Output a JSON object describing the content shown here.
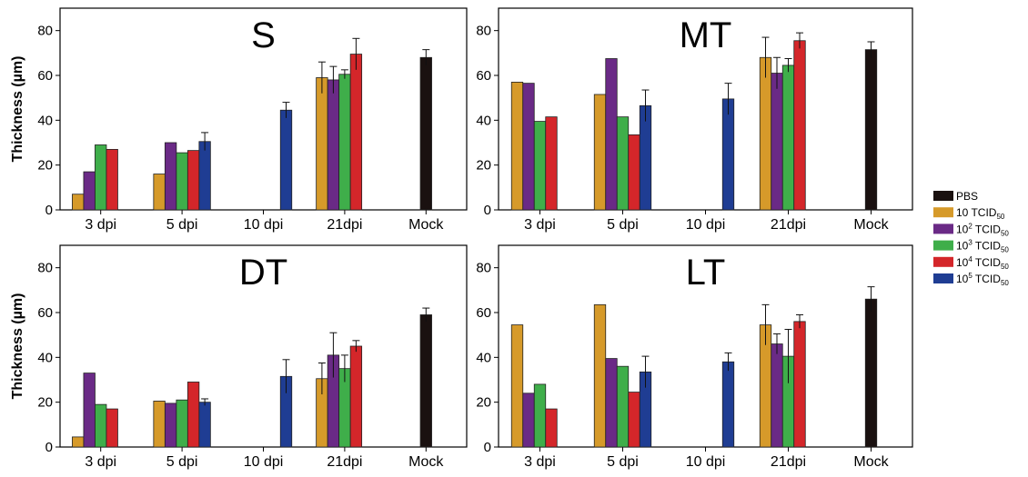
{
  "chart_data": [
    {
      "type": "bar",
      "title": "S",
      "ylabel": "Thickness (µm)",
      "ylim": [
        0,
        90
      ],
      "yticks": [
        0,
        20,
        40,
        60,
        80
      ],
      "categories": [
        "3 dpi",
        "5 dpi",
        "10 dpi",
        "21dpi",
        "Mock"
      ],
      "series": [
        {
          "name": "PBS",
          "values": [
            null,
            null,
            null,
            null,
            68
          ],
          "errors": [
            null,
            null,
            null,
            null,
            3.5
          ]
        },
        {
          "name": "10 TCID50",
          "values": [
            7,
            16,
            null,
            59,
            null
          ],
          "errors": [
            null,
            null,
            null,
            7,
            null
          ]
        },
        {
          "name": "10² TCID50",
          "values": [
            17,
            30,
            null,
            58,
            null
          ],
          "errors": [
            null,
            null,
            null,
            6,
            null
          ]
        },
        {
          "name": "10³ TCID50",
          "values": [
            29,
            25.5,
            null,
            60.5,
            null
          ],
          "errors": [
            null,
            null,
            null,
            2,
            null
          ]
        },
        {
          "name": "10⁴ TCID50",
          "values": [
            27,
            26.5,
            null,
            69.5,
            null
          ],
          "errors": [
            null,
            null,
            null,
            7,
            null
          ]
        },
        {
          "name": "10⁵ TCID50",
          "values": [
            null,
            30.5,
            44.5,
            null,
            null
          ],
          "errors": [
            null,
            4,
            3.5,
            null,
            null
          ]
        }
      ]
    },
    {
      "type": "bar",
      "title": "MT",
      "ylabel": "",
      "ylim": [
        0,
        90
      ],
      "yticks": [
        0,
        20,
        40,
        60,
        80
      ],
      "categories": [
        "3 dpi",
        "5 dpi",
        "10 dpi",
        "21dpi",
        "Mock"
      ],
      "series": [
        {
          "name": "PBS",
          "values": [
            null,
            null,
            null,
            null,
            71.5
          ],
          "errors": [
            null,
            null,
            null,
            null,
            3.5
          ]
        },
        {
          "name": "10 TCID50",
          "values": [
            57,
            51.5,
            null,
            68,
            null
          ],
          "errors": [
            null,
            null,
            null,
            9,
            null
          ]
        },
        {
          "name": "10² TCID50",
          "values": [
            56.5,
            67.5,
            null,
            61,
            null
          ],
          "errors": [
            null,
            null,
            null,
            7,
            null
          ]
        },
        {
          "name": "10³ TCID50",
          "values": [
            39.5,
            41.5,
            null,
            64.5,
            null
          ],
          "errors": [
            null,
            null,
            null,
            3,
            null
          ]
        },
        {
          "name": "10⁴ TCID50",
          "values": [
            41.5,
            33.5,
            null,
            75.5,
            null
          ],
          "errors": [
            null,
            null,
            null,
            3.5,
            null
          ]
        },
        {
          "name": "10⁵ TCID50",
          "values": [
            null,
            46.5,
            49.5,
            null,
            null
          ],
          "errors": [
            null,
            7,
            7,
            null,
            null
          ]
        }
      ]
    },
    {
      "type": "bar",
      "title": "DT",
      "ylabel": "Thickness (µm)",
      "ylim": [
        0,
        90
      ],
      "yticks": [
        0,
        20,
        40,
        60,
        80
      ],
      "categories": [
        "3 dpi",
        "5 dpi",
        "10 dpi",
        "21dpi",
        "Mock"
      ],
      "series": [
        {
          "name": "PBS",
          "values": [
            null,
            null,
            null,
            null,
            59
          ],
          "errors": [
            null,
            null,
            null,
            null,
            3
          ]
        },
        {
          "name": "10 TCID50",
          "values": [
            4.5,
            20.5,
            null,
            30.5,
            null
          ],
          "errors": [
            null,
            null,
            null,
            7,
            null
          ]
        },
        {
          "name": "10² TCID50",
          "values": [
            33,
            19.5,
            null,
            41,
            null
          ],
          "errors": [
            null,
            null,
            null,
            10,
            null
          ]
        },
        {
          "name": "10³ TCID50",
          "values": [
            19,
            21,
            null,
            35,
            null
          ],
          "errors": [
            null,
            null,
            null,
            6,
            null
          ]
        },
        {
          "name": "10⁴ TCID50",
          "values": [
            17,
            29,
            null,
            45,
            null
          ],
          "errors": [
            null,
            null,
            null,
            2.5,
            null
          ]
        },
        {
          "name": "10⁵ TCID50",
          "values": [
            null,
            20,
            31.5,
            null,
            null
          ],
          "errors": [
            null,
            1.5,
            7.5,
            null,
            null
          ]
        }
      ]
    },
    {
      "type": "bar",
      "title": "LT",
      "ylabel": "",
      "ylim": [
        0,
        90
      ],
      "yticks": [
        0,
        20,
        40,
        60,
        80
      ],
      "categories": [
        "3 dpi",
        "5 dpi",
        "10 dpi",
        "21dpi",
        "Mock"
      ],
      "series": [
        {
          "name": "PBS",
          "values": [
            null,
            null,
            null,
            null,
            66
          ],
          "errors": [
            null,
            null,
            null,
            null,
            5.5
          ]
        },
        {
          "name": "10 TCID50",
          "values": [
            54.5,
            63.5,
            null,
            54.5,
            null
          ],
          "errors": [
            null,
            null,
            null,
            9,
            null
          ]
        },
        {
          "name": "10² TCID50",
          "values": [
            24,
            39.5,
            null,
            46,
            null
          ],
          "errors": [
            null,
            null,
            null,
            4.5,
            null
          ]
        },
        {
          "name": "10³ TCID50",
          "values": [
            28,
            36,
            null,
            40.5,
            null
          ],
          "errors": [
            null,
            null,
            null,
            12,
            null
          ]
        },
        {
          "name": "10⁴ TCID50",
          "values": [
            17,
            24.5,
            null,
            56,
            null
          ],
          "errors": [
            null,
            null,
            null,
            3,
            null
          ]
        },
        {
          "name": "10⁵ TCID50",
          "values": [
            null,
            33.5,
            38,
            null,
            null
          ],
          "errors": [
            null,
            7,
            4,
            null,
            null
          ]
        }
      ]
    }
  ],
  "legend": [
    {
      "base": "PBS",
      "sup": "",
      "sub": ""
    },
    {
      "base": "10  TCID",
      "sup": "",
      "sub": "50"
    },
    {
      "base": "10",
      "sup": "2",
      "rest": " TCID",
      "sub": "50"
    },
    {
      "base": "10",
      "sup": "3",
      "rest": " TCID",
      "sub": "50"
    },
    {
      "base": "10",
      "sup": "4",
      "rest": " TCID",
      "sub": "50"
    },
    {
      "base": "10",
      "sup": "5",
      "rest": " TCID",
      "sub": "50"
    }
  ],
  "colors": {
    "PBS": "#1a1110",
    "10 TCID50": "#d69a2a",
    "10² TCID50": "#6a2a86",
    "10³ TCID50": "#3fae4a",
    "10⁴ TCID50": "#d4262a",
    "10⁵ TCID50": "#1f3d93"
  }
}
